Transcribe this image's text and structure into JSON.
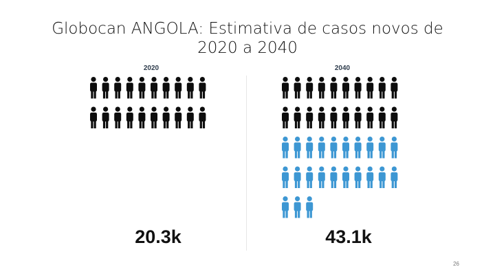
{
  "slide": {
    "title_line1": "Globocan ANGOLA: Estimativa de casos novos de",
    "title_line2": "2020 a 2040",
    "page_number": "26"
  },
  "left_panel": {
    "label": "2020",
    "value": "20.3k",
    "icons_black": 20,
    "icons_blue": 0
  },
  "right_panel": {
    "label": "2040",
    "value": "43.1k",
    "icons_black": 20,
    "icons_blue": 23
  },
  "colors": {
    "existing": "#0d0d0d",
    "projected": "#3d97d3"
  },
  "icon_name": "person-icon"
}
